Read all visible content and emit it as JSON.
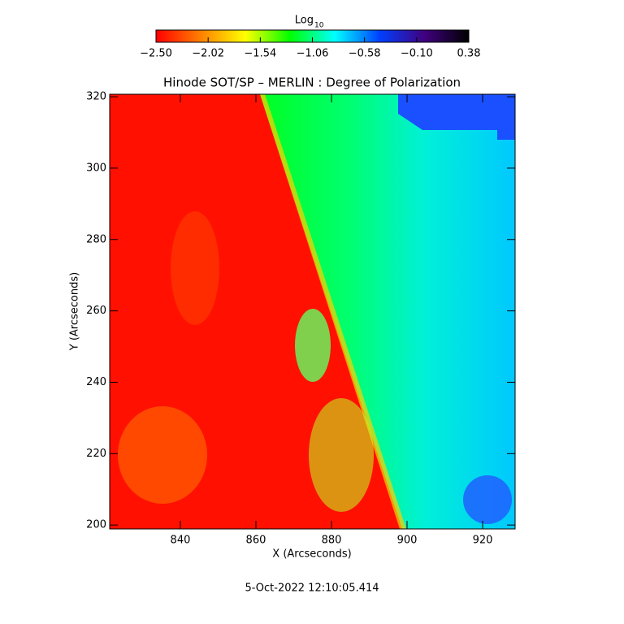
{
  "chart_data": {
    "type": "heatmap",
    "title": "Hinode SOT/SP – MERLIN : Degree of Polarization",
    "xlabel": "X (Arcseconds)",
    "ylabel": "Y (Arcseconds)",
    "xlim": [
      821.3,
      928.6
    ],
    "ylim": [
      198.9,
      320.7
    ],
    "xticks": [
      840,
      860,
      880,
      900,
      920
    ],
    "yticks": [
      200,
      220,
      240,
      260,
      280,
      300,
      320
    ],
    "colorbar": {
      "label": "Log",
      "label_sub": "10",
      "lim": [
        -2.5,
        0.38
      ],
      "ticks": [
        {
          "value": -2.5,
          "label": "−2.50"
        },
        {
          "value": -2.02,
          "label": "−2.02"
        },
        {
          "value": -1.54,
          "label": "−1.54"
        },
        {
          "value": -1.06,
          "label": "−1.06"
        },
        {
          "value": -0.58,
          "label": "−0.58"
        },
        {
          "value": -0.1,
          "label": "−0.10"
        },
        {
          "value": 0.38,
          "label": "0.38"
        }
      ],
      "colormap": [
        "#ff0000",
        "#ff8000",
        "#ffff00",
        "#00ff00",
        "#00ffff",
        "#0040ff",
        "#400080",
        "#000000"
      ]
    },
    "timestamp": "5-Oct-2022 12:10:05.414"
  }
}
